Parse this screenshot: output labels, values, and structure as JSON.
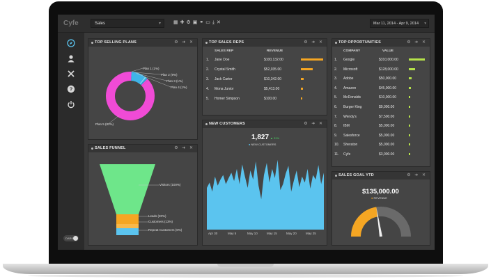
{
  "topbar": {
    "logo": "Cyfe",
    "dashboard": "Sales",
    "date_range": "Mar 11, 2014 - Apr 9, 2014",
    "tool_icons": [
      "grid-icon",
      "plus-icon",
      "gear-icon",
      "image-icon",
      "link-icon",
      "monitor-icon",
      "download-icon",
      "close-icon"
    ]
  },
  "sidebar": {
    "items": [
      "compass-icon",
      "user-icon",
      "tools-icon",
      "help-icon",
      "power-icon"
    ],
    "toggle": "DARK"
  },
  "widget_icons": "⚙ ➜ ✕",
  "top_selling": {
    "title": "TOP SELLING PLANS",
    "colors": {
      "plan1": "#f04bd6",
      "plan5": "#f04bd6",
      "plan2": "#3fb4e8",
      "plan3": "#7ad6f5",
      "plan4": "#2fa6dc"
    },
    "labels": [
      "Plan 1 (1%)",
      "Plan 2 (9%)",
      "Plan 3 (1%)",
      "Plan 4 (1%)",
      "Plan 5 (82%)"
    ],
    "chart_data": {
      "type": "pie",
      "categories": [
        "Plan 1",
        "Plan 2",
        "Plan 3",
        "Plan 4",
        "Plan 5"
      ],
      "values": [
        1,
        9,
        1,
        1,
        82
      ]
    }
  },
  "sales_reps": {
    "title": "TOP SALES REPS",
    "col_rep": "SALES REP",
    "col_rev": "REVENUE",
    "accent": "#f5a623",
    "rows": [
      {
        "rank": "1.",
        "name": "Jane Doe",
        "revenue": "$100,132.00",
        "share": 1.0
      },
      {
        "rank": "2.",
        "name": "Crystal Smith",
        "revenue": "$52,035.00",
        "share": 0.52
      },
      {
        "rank": "3.",
        "name": "Jack Carter",
        "revenue": "$10,342.00",
        "share": 0.14
      },
      {
        "rank": "4.",
        "name": "Mona Junior",
        "revenue": "$5,413.00",
        "share": 0.1
      },
      {
        "rank": "5.",
        "name": "Homer Simpson",
        "revenue": "$100.00",
        "share": 0.04
      }
    ]
  },
  "opportunities": {
    "title": "TOP OPPORTUNITIES",
    "col_company": "COMPANY",
    "col_value": "VALUE",
    "accent": "#b6e34a",
    "rows": [
      {
        "rank": "1.",
        "name": "Google",
        "value": "$310,000.00",
        "share": 1.0
      },
      {
        "rank": "2.",
        "name": "Microsoft",
        "value": "$128,000.00",
        "share": 0.41
      },
      {
        "rank": "3.",
        "name": "Adobe",
        "value": "$50,000.00",
        "share": 0.16
      },
      {
        "rank": "4.",
        "name": "Amazon",
        "value": "$45,000.00",
        "share": 0.15
      },
      {
        "rank": "5.",
        "name": "McDonalds",
        "value": "$10,000.00",
        "share": 0.07
      },
      {
        "rank": "6.",
        "name": "Burger King",
        "value": "$9,000.00",
        "share": 0.06
      },
      {
        "rank": "7.",
        "name": "Wendy's",
        "value": "$7,500.00",
        "share": 0.06
      },
      {
        "rank": "8.",
        "name": "IBM",
        "value": "$5,000.00",
        "share": 0.05
      },
      {
        "rank": "9.",
        "name": "Salesforce",
        "value": "$5,000.00",
        "share": 0.05
      },
      {
        "rank": "10.",
        "name": "Sheraton",
        "value": "$5,000.00",
        "share": 0.05
      },
      {
        "rank": "11.",
        "name": "Cyfe",
        "value": "$3,000.00",
        "share": 0.04
      }
    ]
  },
  "new_customers": {
    "title": "NEW CUSTOMERS",
    "total": "1,827",
    "change": "▲ 31%",
    "legend": "NEW CUSTOMERS",
    "color": "#5bc4ef",
    "change_color": "#4cd964",
    "chart_data": {
      "type": "area",
      "x_ticks": [
        "Apr 30",
        "May 5",
        "May 10",
        "May 15",
        "May 20",
        "May 25"
      ],
      "ylim": [
        0,
        100
      ],
      "values": [
        55,
        62,
        50,
        70,
        58,
        66,
        72,
        60,
        68,
        75,
        64,
        80,
        60,
        86,
        70,
        55,
        78,
        66,
        90,
        58,
        40,
        72,
        88,
        62,
        80,
        68,
        92,
        52,
        60,
        74,
        84,
        50,
        65,
        78,
        56,
        70,
        62,
        80,
        54,
        72,
        66,
        85,
        60,
        75
      ]
    }
  },
  "funnel": {
    "title": "SALES FUNNEL",
    "colors": {
      "visitors": "#6ee68a",
      "leads": "#f5a623",
      "customers": "#f5a623",
      "repeat": "#5bc4ef"
    },
    "labels": [
      "Visitors (100%)",
      "Leads (20%)",
      "Customers (13%)",
      "Repeat Customers (6%)"
    ],
    "chart_data": {
      "type": "bar",
      "categories": [
        "Visitors",
        "Leads",
        "Customers",
        "Repeat Customers"
      ],
      "values": [
        100,
        20,
        13,
        6
      ]
    }
  },
  "sales_goal": {
    "title": "SALES GOAL YTD",
    "amount": "$135,000.00",
    "legend": "REVENUE",
    "fill_color": "#f5a623",
    "track_color": "#6a6a6a",
    "progress": 0.45
  }
}
